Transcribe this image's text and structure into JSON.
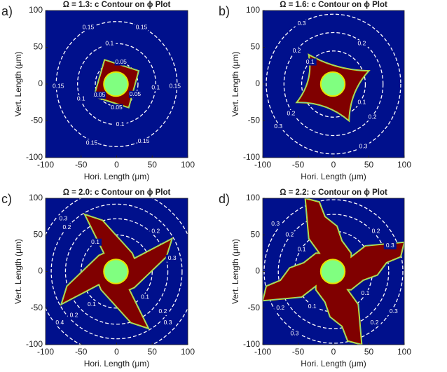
{
  "chart_data": [
    {
      "type": "contour",
      "panel": "a)",
      "title": "Ω = 1.3: c Contour on ϕ Plot",
      "x_label": "Hori. Length (μm)",
      "y_label": "Vert. Length (μm)",
      "xlim": [
        -100,
        100
      ],
      "ylim": [
        -100,
        100
      ],
      "xticks": [
        -100,
        -50,
        0,
        50,
        100
      ],
      "yticks": [
        -100,
        -50,
        0,
        50,
        100
      ],
      "contour_levels": [
        0.05,
        0.1,
        0.15
      ]
    },
    {
      "type": "contour",
      "panel": "b)",
      "title": "Ω = 1.6: c Contour on ϕ Plot",
      "x_label": "Hori. Length (μm)",
      "y_label": "Vert. Length (μm)",
      "xlim": [
        -100,
        100
      ],
      "ylim": [
        -100,
        100
      ],
      "xticks": [
        -100,
        -50,
        0,
        50,
        100
      ],
      "yticks": [
        -100,
        -50,
        0,
        50,
        100
      ],
      "contour_levels": [
        0.1,
        0.2,
        0.3
      ]
    },
    {
      "type": "contour",
      "panel": "c)",
      "title": "Ω = 2.0: c Contour on ϕ Plot",
      "x_label": "Hori. Length (μm)",
      "y_label": "Vert. Length (μm)",
      "xlim": [
        -100,
        100
      ],
      "ylim": [
        -100,
        100
      ],
      "xticks": [
        -100,
        -50,
        0,
        50,
        100
      ],
      "yticks": [
        -100,
        -50,
        0,
        50,
        100
      ],
      "contour_levels": [
        0.1,
        0.2,
        0.3,
        0.4
      ]
    },
    {
      "type": "contour",
      "panel": "d)",
      "title": "Ω = 2.2: c Contour on ϕ Plot",
      "x_label": "Hori. Length (μm)",
      "y_label": "Vert. Length (μm)",
      "xlim": [
        -100,
        100
      ],
      "ylim": [
        -100,
        100
      ],
      "xticks": [
        -100,
        -50,
        0,
        50,
        100
      ],
      "yticks": [
        -100,
        -50,
        0,
        50,
        100
      ],
      "contour_levels": [
        0.1,
        0.2,
        0.3
      ]
    }
  ]
}
